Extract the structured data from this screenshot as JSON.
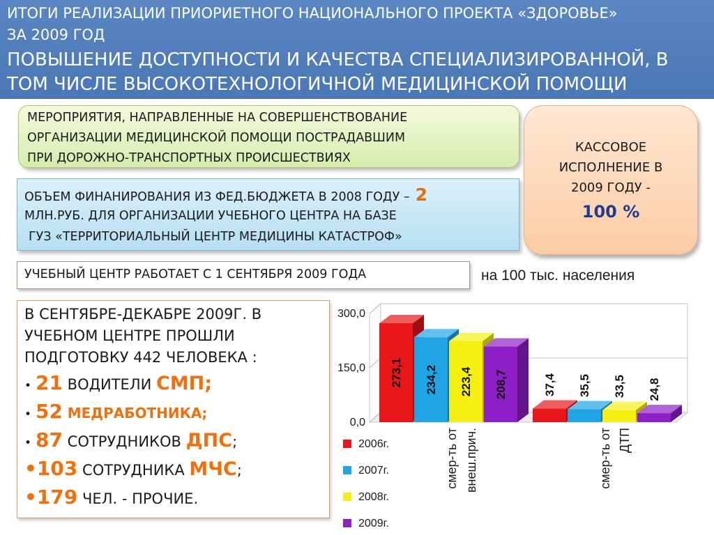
{
  "header": {
    "title_line1": "ИТОГИ РЕАЛИЗАЦИИ ПРИОРИЕТНОГО НАЦИОНАЛЬНОГО ПРОЕКТА «ЗДОРОВЬЕ»",
    "title_line2": "ЗА 2009 ГОД",
    "subtitle_line1": "ПОВЫШЕНИЕ ДОСТУПНОСТИ И КАЧЕСТВА СПЕЦИАЛИЗИРОВАННОЙ, В",
    "subtitle_line2": "ТОМ ЧИСЛЕ ВЫСОКОТЕХНОЛОГИЧНОЙ МЕДИЦИНСКОЙ ПОМОЩИ"
  },
  "measures_box": {
    "line1": "МЕРОПРИЯТИЯ, НАПРАВЛЕННЫЕ НА СОВЕРШЕНСТВОВАНИЕ",
    "line2": "ОРГАНИЗАЦИИ МЕДИЦИНСКОЙ ПОМОЩИ ПОСТРАДАВШИМ",
    "line3": "ПРИ ДОРОЖНО-ТРАНСПОРТНЫХ ПРОИСШЕСТВИЯХ"
  },
  "funding_box": {
    "line1_text": "ОБЪЕМ ФИНАНИРОВАНИЯ ИЗ ФЕД.БЮДЖЕТА В 2008 ГОДУ –",
    "amount": "2",
    "line2": "МЛН.РУБ.  ДЛЯ ОРГАНИЗАЦИИ УЧЕБНОГО ЦЕНТРА НА БАЗЕ",
    "line3": "ГУЗ «ТЕРРИТОРИАЛЬНЫЙ ЦЕНТР МЕДИЦИНЫ КАТАСТРОФ»"
  },
  "execution_box": {
    "line1": "КАССОВОЕ",
    "line2": "ИСПОЛНЕНИЕ  В",
    "line3": "2009 ГОДУ  -",
    "percent": "100 %"
  },
  "center_note": "УЧЕБНЫЙ ЦЕНТР РАБОТАЕТ С 1 СЕНТЯБРЯ 2009 ГОДА",
  "training": {
    "intro_line1": "В СЕНТЯБРЕ-ДЕКАБРЕ 2009Г. В",
    "intro_line2": "УЧЕБНОМ ЦЕНТРЕ ПРОШЛИ",
    "intro_line3": "ПОДГОТОВКУ  442 ЧЕЛОВЕКА :",
    "items": [
      {
        "bullet": "•",
        "num": "21",
        "text": " ВОДИТЕЛИ ",
        "org": "СМП;",
        "tail": ""
      },
      {
        "bullet": "•",
        "num": "52",
        "text": " ",
        "org": "МЕДРАБОТНИКА;",
        "tail": ""
      },
      {
        "bullet": "•",
        "num": "87",
        "text": " СОТРУДНИКОВ ",
        "org": "ДПС",
        "tail": ";"
      },
      {
        "bullet": "•",
        "num": "103",
        "text": " СОТРУДНИКА ",
        "org": "МЧС",
        "tail": ";"
      },
      {
        "bullet": "•",
        "num": "179",
        "text": " ЧЕЛ. - ПРОЧИЕ.",
        "org": "",
        "tail": ""
      }
    ]
  },
  "chart_caption": "на 100 тыс. населения",
  "colors": {
    "accent_orange": "#F07010",
    "header_blue": "#4A77B5",
    "percent_blue": "#1F3C8E"
  },
  "chart_data": {
    "type": "bar",
    "title": "",
    "xlabel": "",
    "ylabel": "",
    "ylim": [
      0,
      300
    ],
    "y_ticks": [
      "0,0",
      "150,0",
      "300,0"
    ],
    "categories": [
      "смер-ть от внеш.прич.",
      "смер-ть от ДТП"
    ],
    "category_lines": [
      [
        "смер-ть от",
        "внеш.прич."
      ],
      [
        "смер-ть от",
        "ДТП"
      ]
    ],
    "series": [
      {
        "name": "2006г.",
        "color": "#E8161B",
        "values": [
          273.1,
          37.4
        ],
        "labels": [
          "273,1",
          "37,4"
        ]
      },
      {
        "name": "2007г.",
        "color": "#1FA5E6",
        "values": [
          234.2,
          35.5
        ],
        "labels": [
          "234,2",
          "35,5"
        ]
      },
      {
        "name": "2008г.",
        "color": "#F5F012",
        "values": [
          223.4,
          33.5
        ],
        "labels": [
          "223,4",
          "33,5"
        ]
      },
      {
        "name": "2009г.",
        "color": "#8E1FC6",
        "values": [
          208.7,
          24.8
        ],
        "labels": [
          "208,7",
          "24,8"
        ]
      }
    ],
    "grid": true,
    "legend_position": "bottom-left",
    "style": "3d"
  }
}
